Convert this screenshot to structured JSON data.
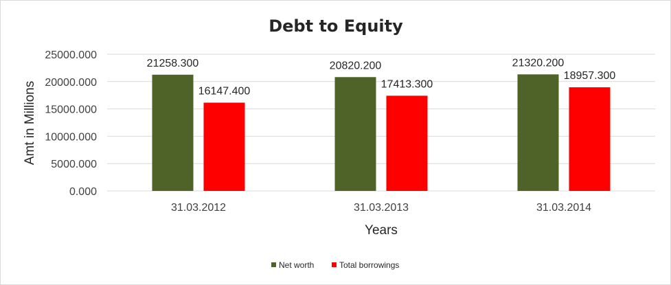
{
  "chart_data": {
    "type": "bar",
    "title": "Debt to Equity",
    "xlabel": "Years",
    "ylabel": "Amt in Millions",
    "categories": [
      "31.03.2012",
      "31.03.2013",
      "31.03.2014"
    ],
    "series": [
      {
        "name": "Net worth",
        "color": "#4f6228",
        "values": [
          21258.3,
          20820.2,
          21320.2
        ],
        "labels": [
          "21258.300",
          "20820.200",
          "21320.200"
        ]
      },
      {
        "name": "Total borrowings",
        "color": "#ff0000",
        "values": [
          16147.4,
          17413.3,
          18957.3
        ],
        "labels": [
          "16147.400",
          "17413.300",
          "18957.300"
        ]
      }
    ],
    "ylim": [
      0,
      25000
    ],
    "yticks": [
      0,
      5000,
      10000,
      15000,
      20000,
      25000
    ],
    "ytick_labels": [
      "0.000",
      "5000.000",
      "10000.000",
      "15000.000",
      "20000.000",
      "25000.000"
    ],
    "grid": true,
    "legend_position": "bottom"
  }
}
